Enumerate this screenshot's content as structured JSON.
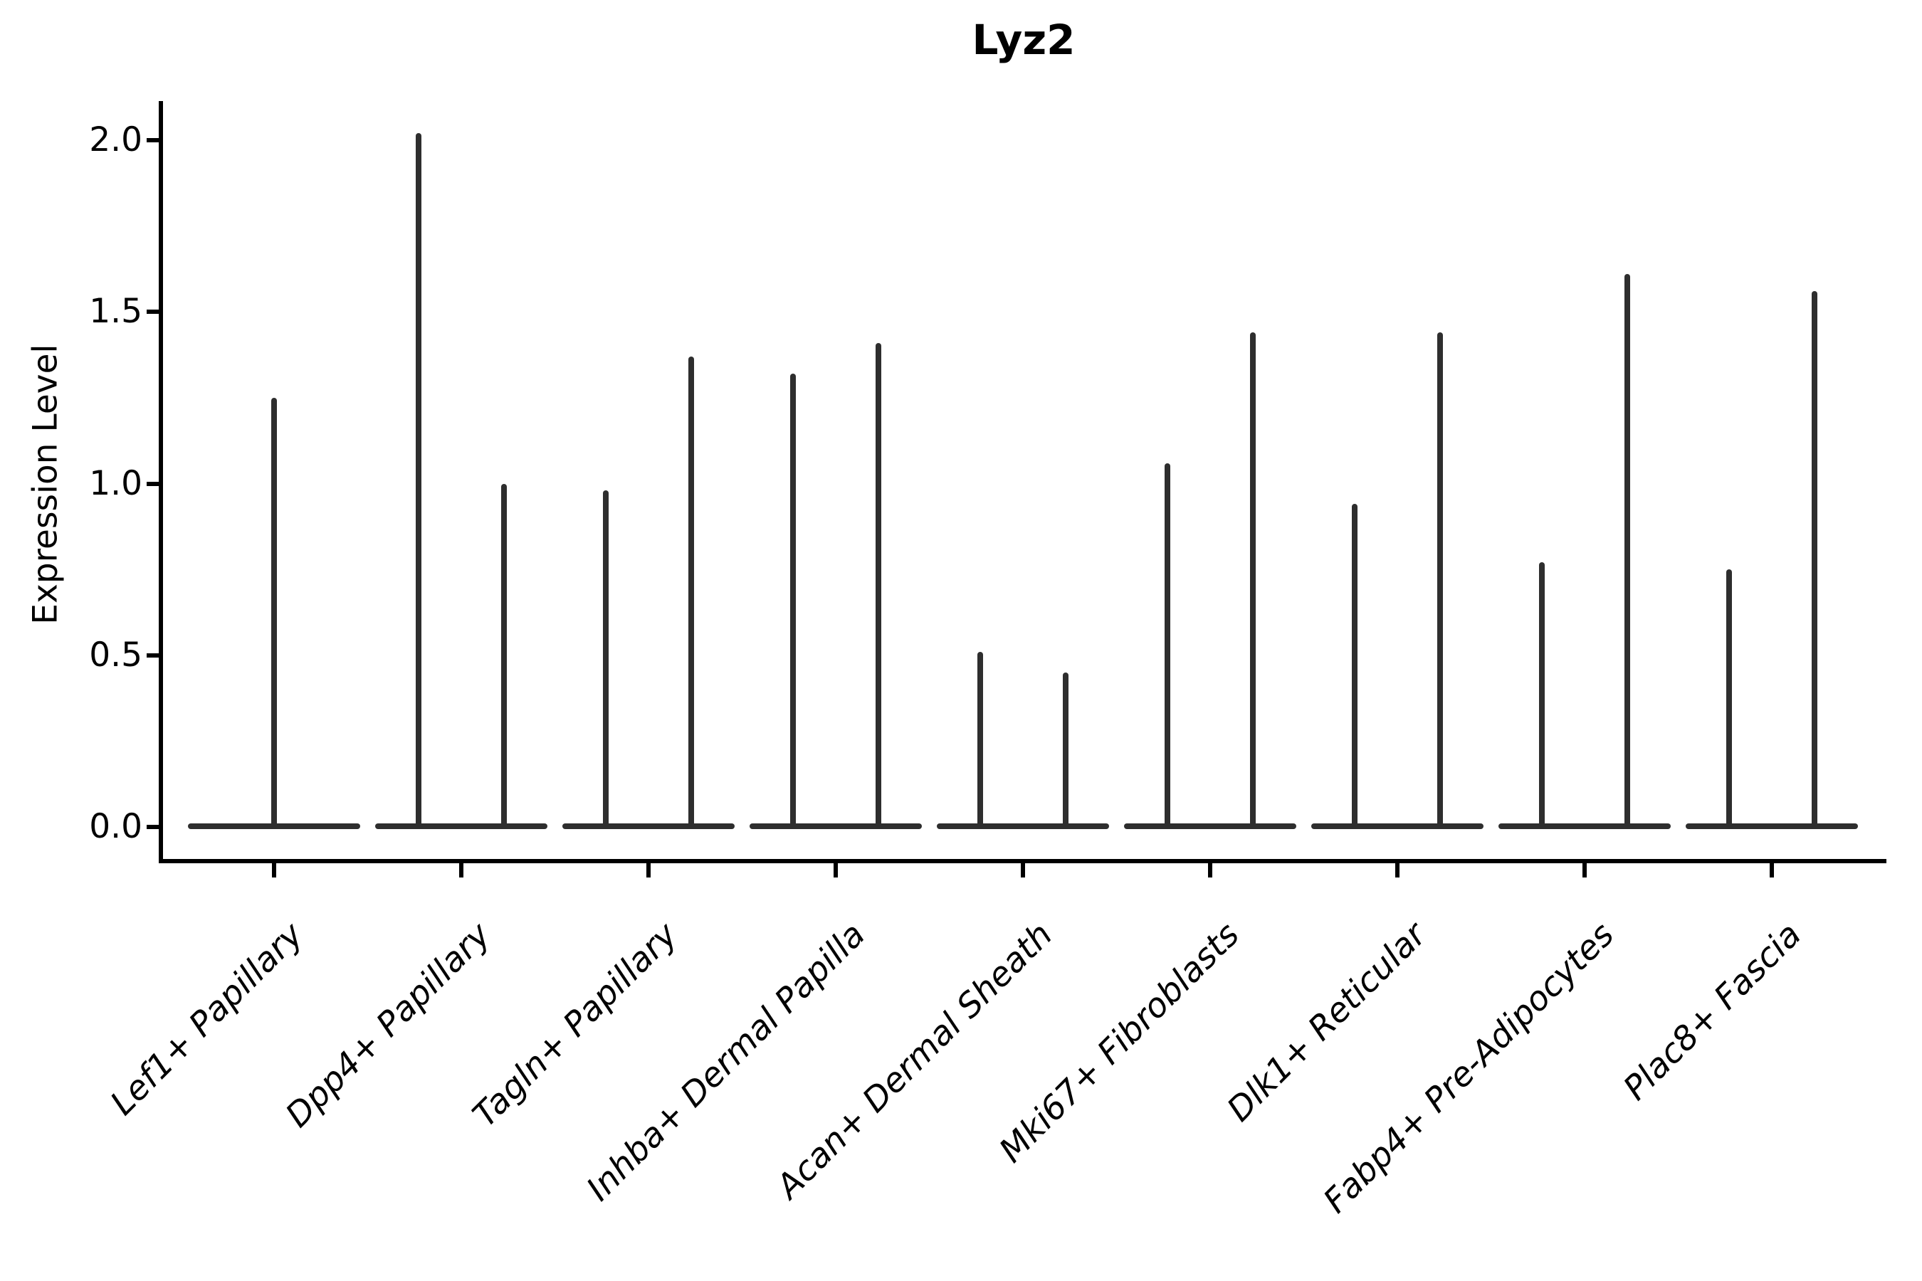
{
  "title": "Lyz2",
  "y_axis": {
    "label": "Expression Level",
    "tick_labels": [
      "0.0",
      "0.5",
      "1.0",
      "1.5",
      "2.0"
    ],
    "tick_values": [
      0.0,
      0.5,
      1.0,
      1.5,
      2.0
    ]
  },
  "chart_data": {
    "type": "violin",
    "title": "Lyz2",
    "xlabel": "",
    "ylabel": "Expression Level",
    "ylim": [
      -0.1,
      2.1
    ],
    "yticks": [
      0.0,
      0.5,
      1.0,
      1.5,
      2.0
    ],
    "grid": false,
    "legend": "none",
    "description": "Single-cell expression violin plot. Each cell-type category shows density concentrated at 0 (wide flat base bar) with thin vertical density spikes reaching the maximum expression value. All categories except the first contain two side-by-side sub-violins.",
    "baseline_value": 0.0,
    "categories": [
      "Lef1+ Papillary",
      "Dpp4+ Papillary",
      "Tagln+ Papillary",
      "Inhba+ Dermal Papilla",
      "Acan+ Dermal Sheath",
      "Mki67+ Fibroblasts",
      "Dlk1+ Reticular",
      "Fabp4+ Pre-Adipocytes",
      "Plac8+ Fascia"
    ],
    "violins": [
      {
        "category": "Lef1+ Papillary",
        "spikes": [
          {
            "position": "center",
            "max": 1.25
          }
        ]
      },
      {
        "category": "Dpp4+ Papillary",
        "spikes": [
          {
            "position": "left",
            "max": 2.02
          },
          {
            "position": "right",
            "max": 1.0
          }
        ]
      },
      {
        "category": "Tagln+ Papillary",
        "spikes": [
          {
            "position": "left",
            "max": 0.98
          },
          {
            "position": "right",
            "max": 1.37
          }
        ]
      },
      {
        "category": "Inhba+ Dermal Papilla",
        "spikes": [
          {
            "position": "left",
            "max": 1.32
          },
          {
            "position": "right",
            "max": 1.41
          }
        ]
      },
      {
        "category": "Acan+ Dermal Sheath",
        "spikes": [
          {
            "position": "left",
            "max": 0.51
          },
          {
            "position": "right",
            "max": 0.45
          }
        ]
      },
      {
        "category": "Mki67+ Fibroblasts",
        "spikes": [
          {
            "position": "left",
            "max": 1.06
          },
          {
            "position": "right",
            "max": 1.44
          }
        ]
      },
      {
        "category": "Dlk1+ Reticular",
        "spikes": [
          {
            "position": "left",
            "max": 0.94
          },
          {
            "position": "right",
            "max": 1.44
          }
        ]
      },
      {
        "category": "Fabp4+ Pre-Adipocytes",
        "spikes": [
          {
            "position": "left",
            "max": 0.77
          },
          {
            "position": "right",
            "max": 1.61
          }
        ]
      },
      {
        "category": "Plac8+ Fascia",
        "spikes": [
          {
            "position": "left",
            "max": 0.75
          },
          {
            "position": "right",
            "max": 1.56
          }
        ]
      }
    ],
    "colors": {
      "violin": "#2e2e2e",
      "axis": "#000000",
      "text": "#000000",
      "background": "#ffffff"
    }
  }
}
